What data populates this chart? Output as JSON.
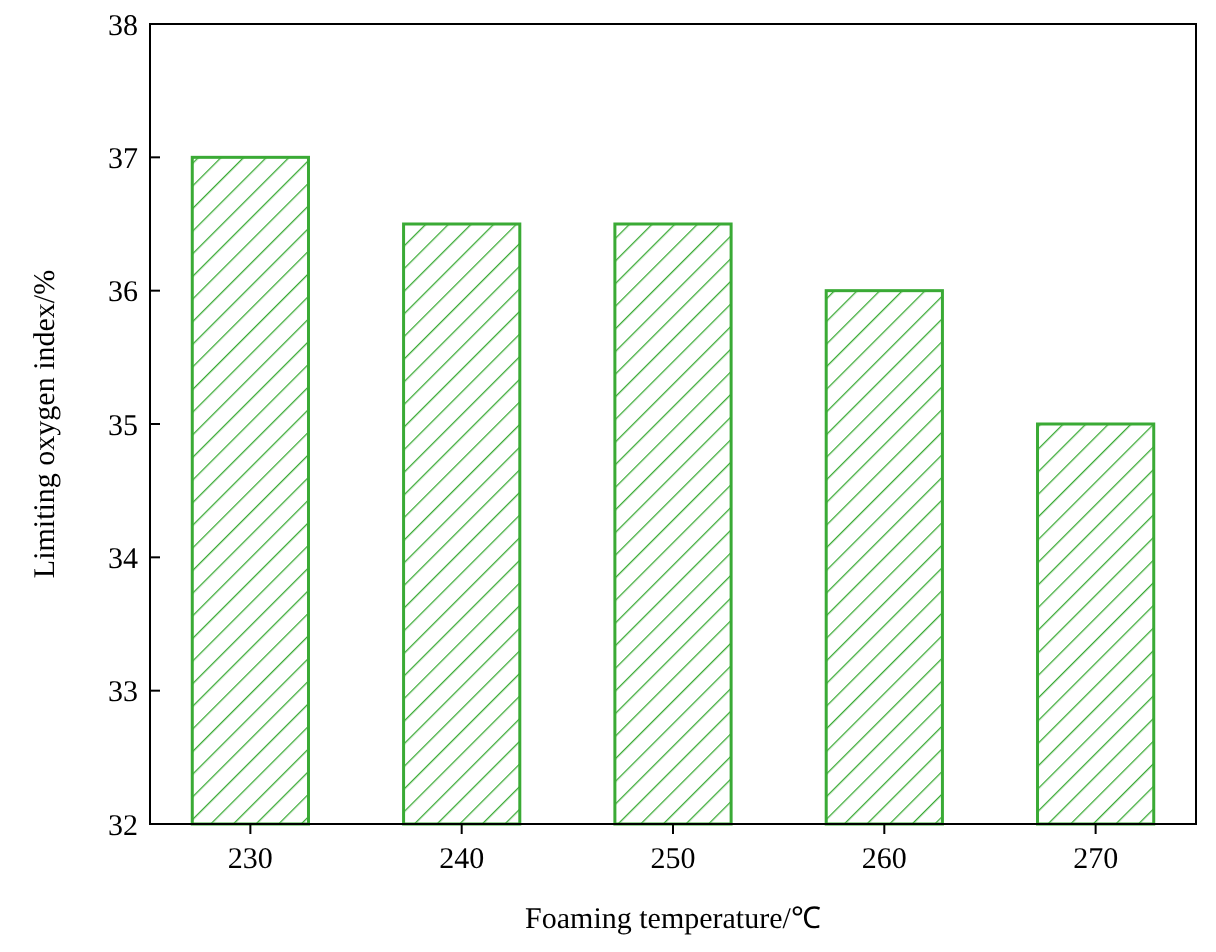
{
  "chart_data": {
    "type": "bar",
    "xlabel": "Foaming temperature/℃",
    "ylabel": "Limiting oxygen index/%",
    "categories": [
      "230",
      "240",
      "250",
      "260",
      "270"
    ],
    "values": [
      37,
      36.5,
      36.5,
      36,
      35
    ],
    "color": "#3aaa35",
    "ylim": [
      32,
      38
    ],
    "yticks": [
      32,
      33,
      34,
      35,
      36,
      37,
      38
    ],
    "grid": false
  }
}
